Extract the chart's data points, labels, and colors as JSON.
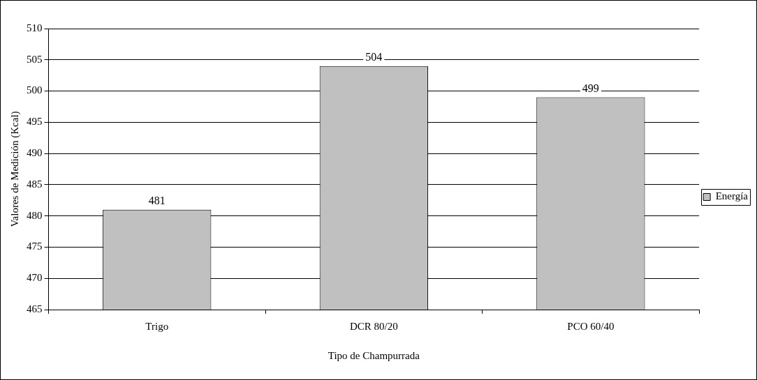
{
  "chart_data": {
    "type": "bar",
    "xlabel": "Tipo de Champurrada",
    "ylabel": "Valores de Medición (Kcal)",
    "categories": [
      "Trigo",
      "DCR 80/20",
      "PCO 60/40"
    ],
    "series": [
      {
        "name": "Energía",
        "color": "#c0c0c0",
        "values": [
          481,
          504,
          499
        ]
      }
    ],
    "ylim": [
      465,
      510
    ],
    "yticks": [
      465,
      470,
      475,
      480,
      485,
      490,
      495,
      500,
      505,
      510
    ],
    "grid": "y",
    "legend": "right",
    "data_labels": true
  }
}
